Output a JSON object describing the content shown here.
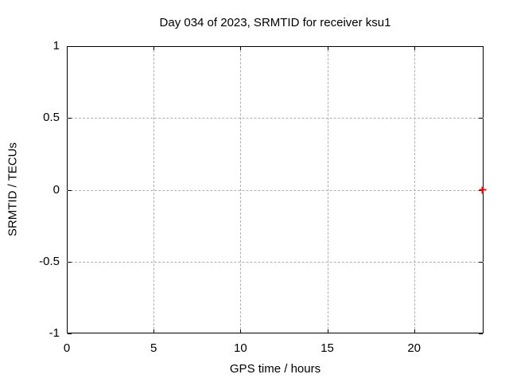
{
  "chart_data": {
    "type": "scatter",
    "title": "Day 034 of 2023, SRMTID for receiver ksu1",
    "xlabel": "GPS time / hours",
    "ylabel": "SRMTID / TECUs",
    "xlim": [
      0,
      24
    ],
    "ylim": [
      -1,
      1
    ],
    "xticks": [
      0,
      5,
      10,
      15,
      20
    ],
    "yticks": [
      1,
      0.5,
      0,
      -0.5,
      -1
    ],
    "grid": true,
    "legend": "none",
    "series": [
      {
        "name": "srmtid-points",
        "marker": "plus",
        "color": "#ff0000",
        "points": [
          {
            "x": 23.95,
            "y": 0
          }
        ]
      }
    ]
  },
  "colors": {
    "background": "#ffffff",
    "plot_border": "#000000",
    "grid": "#b0b0b0",
    "text": "#000000",
    "point": "#ff0000"
  }
}
